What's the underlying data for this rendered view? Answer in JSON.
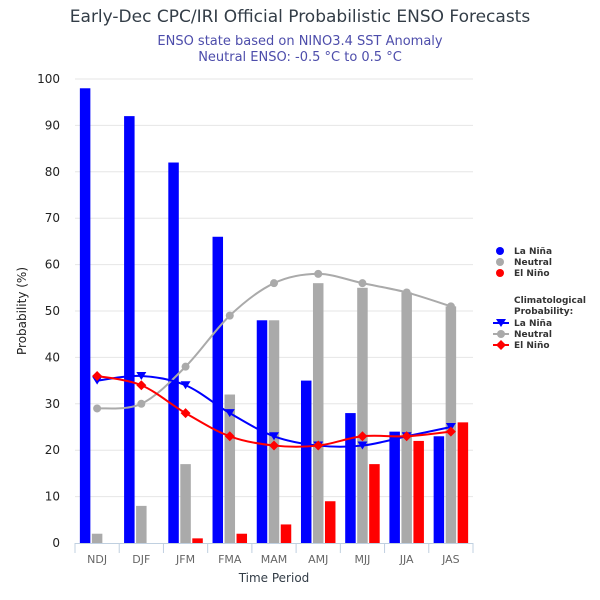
{
  "chart_data": {
    "type": "bar",
    "title": "Early-Dec CPC/IRI Official Probabilistic ENSO Forecasts",
    "subtitle": [
      "ENSO state based on NINO3.4 SST Anomaly",
      "Neutral ENSO: -0.5 °C to 0.5 °C"
    ],
    "xlabel": "Time Period",
    "ylabel": "Probability (%)",
    "ylim": [
      0,
      100
    ],
    "yticks": [
      0,
      10,
      20,
      30,
      40,
      50,
      60,
      70,
      80,
      90,
      100
    ],
    "grid": true,
    "legend_position": "right",
    "categories": [
      "NDJ",
      "DJF",
      "JFM",
      "FMA",
      "MAM",
      "AMJ",
      "MJJ",
      "JJA",
      "JAS"
    ],
    "series": [
      {
        "name": "La Niña",
        "kind": "bar",
        "color": "#0000ff",
        "values": [
          98,
          92,
          82,
          66,
          48,
          35,
          28,
          24,
          23
        ]
      },
      {
        "name": "Neutral",
        "kind": "bar",
        "color": "#aaaaaa",
        "values": [
          2,
          8,
          17,
          32,
          48,
          56,
          55,
          54,
          51
        ]
      },
      {
        "name": "El Niño",
        "kind": "bar",
        "color": "#ff0000",
        "values": [
          0,
          0,
          1,
          2,
          4,
          9,
          17,
          22,
          26
        ]
      }
    ],
    "climatology_title": "Climatological Probability:",
    "climatology": [
      {
        "name": "La Niña",
        "kind": "line",
        "marker": "triangle-down",
        "color": "#0000ff",
        "values": [
          35,
          36,
          34,
          28,
          23,
          21,
          21,
          23,
          25
        ]
      },
      {
        "name": "Neutral",
        "kind": "line",
        "marker": "circle",
        "color": "#aaaaaa",
        "values": [
          29,
          30,
          38,
          49,
          56,
          58,
          56,
          54,
          51
        ]
      },
      {
        "name": "El Niño",
        "kind": "line",
        "marker": "diamond",
        "color": "#ff0000",
        "values": [
          36,
          34,
          28,
          23,
          21,
          21,
          23,
          23,
          24
        ]
      }
    ]
  }
}
